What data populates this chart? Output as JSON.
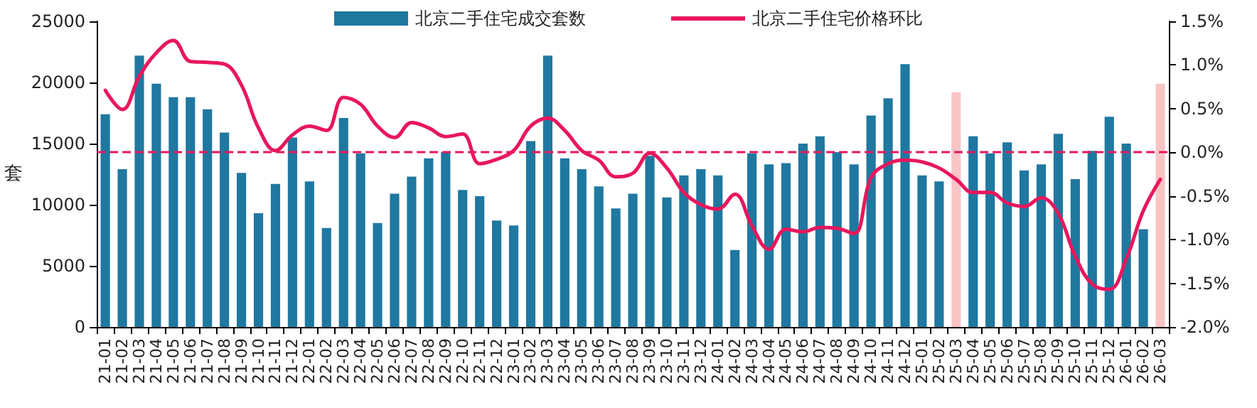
{
  "chart_data": {
    "type": "bar",
    "ylabel": "套",
    "categories": [
      "21-01",
      "21-02",
      "21-03",
      "21-04",
      "21-05",
      "21-06",
      "21-07",
      "21-08",
      "21-09",
      "21-10",
      "21-11",
      "21-12",
      "22-01",
      "22-02",
      "22-03",
      "22-04",
      "22-05",
      "22-06",
      "22-07",
      "22-08",
      "22-09",
      "22-10",
      "22-11",
      "22-12",
      "23-01",
      "23-02",
      "23-03",
      "23-04",
      "23-05",
      "23-06",
      "23-07",
      "23-08",
      "23-09",
      "23-10",
      "23-11",
      "23-12",
      "24-01",
      "24-02",
      "24-03",
      "24-04",
      "24-05",
      "24-06",
      "24-07",
      "24-08",
      "24-09",
      "24-10",
      "24-11",
      "24-12",
      "25-01",
      "25-02",
      "25-03",
      "25-04",
      "25-05",
      "25-06",
      "25-07",
      "25-08",
      "25-09",
      "25-10",
      "25-11",
      "25-12",
      "26-01",
      "26-02",
      "26-03"
    ],
    "series": [
      {
        "name": "北京二手住宅成交套数",
        "color": "#1f78a0",
        "colors": [
          "#1f78a0",
          "#1f78a0",
          "#1f78a0",
          "#1f78a0",
          "#1f78a0",
          "#1f78a0",
          "#1f78a0",
          "#1f78a0",
          "#1f78a0",
          "#1f78a0",
          "#1f78a0",
          "#1f78a0",
          "#1f78a0",
          "#1f78a0",
          "#1f78a0",
          "#1f78a0",
          "#1f78a0",
          "#1f78a0",
          "#1f78a0",
          "#1f78a0",
          "#1f78a0",
          "#1f78a0",
          "#1f78a0",
          "#1f78a0",
          "#1f78a0",
          "#1f78a0",
          "#1f78a0",
          "#1f78a0",
          "#1f78a0",
          "#1f78a0",
          "#1f78a0",
          "#1f78a0",
          "#1f78a0",
          "#1f78a0",
          "#1f78a0",
          "#1f78a0",
          "#1f78a0",
          "#1f78a0",
          "#1f78a0",
          "#1f78a0",
          "#1f78a0",
          "#1f78a0",
          "#1f78a0",
          "#1f78a0",
          "#1f78a0",
          "#1f78a0",
          "#1f78a0",
          "#1f78a0",
          "#1f78a0",
          "#1f78a0",
          "#f9c4c4",
          "#1f78a0",
          "#1f78a0",
          "#1f78a0",
          "#1f78a0",
          "#1f78a0",
          "#1f78a0",
          "#1f78a0",
          "#1f78a0",
          "#1f78a0",
          "#1f78a0",
          "#1f78a0",
          "#f9c4c4"
        ],
        "values": [
          17400,
          12900,
          22200,
          19900,
          18800,
          18800,
          17800,
          15900,
          12600,
          9300,
          11700,
          15500,
          11900,
          8100,
          17100,
          14200,
          8500,
          10900,
          12300,
          13800,
          14300,
          11200,
          10700,
          8700,
          8300,
          15200,
          22200,
          13800,
          12900,
          11500,
          9700,
          10900,
          14000,
          10600,
          12400,
          12900,
          12400,
          6300,
          14200,
          13300,
          13400,
          15000,
          15600,
          14300,
          13300,
          17300,
          18700,
          21500,
          12400,
          11900,
          19200,
          15600,
          14200,
          15100,
          12800,
          13300,
          15800,
          12100,
          14400,
          17200,
          15000,
          8000,
          19900
        ]
      },
      {
        "name": "北京二手住宅价格环比",
        "type": "line",
        "axis": "y2",
        "color": "#e8175d",
        "marker": "none",
        "line_style": "solid",
        "values": [
          0.71,
          0.49,
          0.87,
          1.14,
          1.28,
          1.04,
          1.03,
          1.01,
          0.77,
          0.28,
          0.02,
          0.2,
          0.3,
          0.25,
          0.63,
          0.55,
          0.3,
          0.17,
          0.34,
          0.28,
          0.18,
          0.21,
          -0.13,
          -0.08,
          0.02,
          0.3,
          0.39,
          0.25,
          0.02,
          -0.09,
          -0.28,
          -0.24,
          -0.01,
          -0.18,
          -0.46,
          -0.6,
          -0.65,
          -0.48,
          -0.84,
          -1.11,
          -0.88,
          -0.91,
          -0.86,
          -0.87,
          -0.93,
          -0.29,
          -0.13,
          -0.09,
          -0.11,
          -0.18,
          -0.31,
          -0.46,
          -0.46,
          -0.58,
          -0.62,
          -0.52,
          -0.7,
          -1.19,
          -1.51,
          -1.57,
          -1.22,
          -0.67,
          -0.31
        ]
      }
    ],
    "ylim": [
      0,
      25000
    ],
    "yticks": [
      0,
      5000,
      10000,
      15000,
      20000,
      25000
    ],
    "y2lim": [
      -2.0,
      1.5
    ],
    "y2ticks": [
      {
        "value": -2.0,
        "label": "-2.0%"
      },
      {
        "value": -1.5,
        "label": "-1.5%"
      },
      {
        "value": -1.0,
        "label": "-1.0%"
      },
      {
        "value": -0.5,
        "label": "-0.5%"
      },
      {
        "value": 0,
        "label": "0.0%"
      },
      {
        "value": 0.5,
        "label": "0.5%"
      },
      {
        "value": 1.0,
        "label": "1.0%"
      },
      {
        "value": 1.5,
        "label": "1.5%"
      }
    ],
    "ref_lines": [
      {
        "axis": "y2",
        "value": 0,
        "color": "#e8175d",
        "line_style": "dashed"
      }
    ],
    "grid": false,
    "legend": "top"
  }
}
